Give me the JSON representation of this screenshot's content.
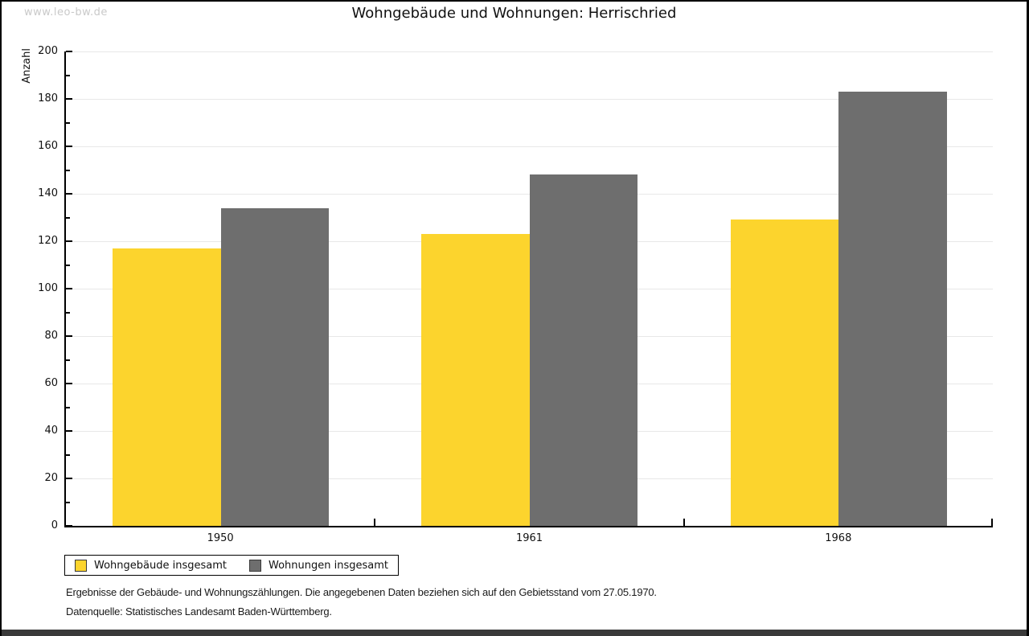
{
  "watermark": "www.leo-bw.de",
  "chart_data": {
    "type": "bar",
    "title": "Wohngebäude und Wohnungen: Herrischried",
    "categories": [
      "1950",
      "1961",
      "1968"
    ],
    "series": [
      {
        "name": "Wohngebäude insgesamt",
        "color": "#fcd42d",
        "values": [
          117,
          123,
          129
        ]
      },
      {
        "name": "Wohnungen insgesamt",
        "color": "#6e6e6e",
        "values": [
          134,
          148,
          183
        ]
      }
    ],
    "ylabel": "Anzahl",
    "ylim": [
      0,
      200
    ],
    "ytick_step": 20,
    "yminor_step": 10,
    "grid": "horizontal",
    "gridline_color": "#e8e8e8",
    "legend_position": "bottom-left"
  },
  "footnotes": [
    "Ergebnisse der Gebäude- und Wohnungszählungen. Die angegebenen Daten beziehen sich auf den Gebietsstand vom 27.05.1970.",
    "Datenquelle: Statistisches Landesamt Baden-Württemberg."
  ]
}
